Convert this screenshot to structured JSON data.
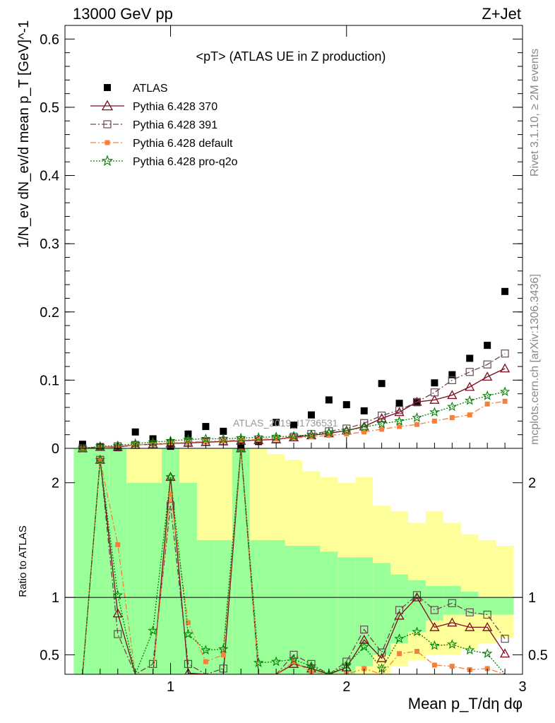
{
  "header": {
    "left": "13000 GeV pp",
    "right": "Z+Jet"
  },
  "side_labels": {
    "rivet": "Rivet 3.1.10, ≥ 2M events",
    "mcplots": "mcplots.cern.ch [arXiv:1306.3436]"
  },
  "watermark": "ATLAS_2019_I1736531",
  "colors": {
    "atlas": "#000000",
    "p370": "#7f0a1e",
    "p391": "#6b4652",
    "pdefault": "#f5803c",
    "pq2o": "#008000",
    "band_green": "#99ff99",
    "band_yellow": "#ffff99"
  },
  "chart_data": [
    {
      "type": "scatter",
      "title": "<pT> (ATLAS UE in Z production)",
      "ylabel": "1/N_ev dN_ev/d mean p_T [GeV]^-1",
      "ylim": [
        0,
        0.62
      ],
      "xlim": [
        0.4,
        3.0
      ],
      "yticks": [
        "0",
        "0.1",
        "0.2",
        "0.3",
        "0.4",
        "0.5",
        "0.6"
      ],
      "legend_position": "top-left",
      "x": [
        0.5,
        0.6,
        0.7,
        0.8,
        0.9,
        1.0,
        1.1,
        1.2,
        1.3,
        1.4,
        1.5,
        1.6,
        1.7,
        1.8,
        1.9,
        2.0,
        2.1,
        2.2,
        2.3,
        2.4,
        2.5,
        2.6,
        2.7,
        2.8,
        2.9
      ],
      "series": [
        {
          "name": "ATLAS",
          "marker": "square",
          "values": [
            0.006,
            0.002,
            0.001,
            0.024,
            0.014,
            0.003,
            0.021,
            0.032,
            0.025,
            0.004,
            0.01,
            0.038,
            0.034,
            0.049,
            0.071,
            0.064,
            0.055,
            0.095,
            0.066,
            0.067,
            0.096,
            0.108,
            0.132,
            0.151,
            0.23
          ]
        },
        {
          "name": "Pythia 6.428 370",
          "marker": "triangle",
          "values": [
            0.0,
            0.002,
            0.002,
            0.005,
            0.006,
            0.007,
            0.008,
            0.009,
            0.01,
            0.011,
            0.012,
            0.013,
            0.016,
            0.019,
            0.022,
            0.026,
            0.032,
            0.044,
            0.053,
            0.068,
            0.071,
            0.078,
            0.09,
            0.105,
            0.117
          ]
        },
        {
          "name": "Pythia 6.428 391",
          "marker": "open-square",
          "values": [
            0.0,
            0.002,
            0.003,
            0.005,
            0.006,
            0.007,
            0.009,
            0.01,
            0.011,
            0.012,
            0.013,
            0.014,
            0.017,
            0.021,
            0.025,
            0.029,
            0.037,
            0.048,
            0.056,
            0.068,
            0.082,
            0.1,
            0.112,
            0.123,
            0.139
          ]
        },
        {
          "name": "Pythia 6.428 default",
          "marker": "small-square",
          "values": [
            0.0,
            0.002,
            0.003,
            0.005,
            0.006,
            0.008,
            0.009,
            0.01,
            0.011,
            0.012,
            0.013,
            0.014,
            0.015,
            0.017,
            0.019,
            0.021,
            0.024,
            0.028,
            0.032,
            0.035,
            0.04,
            0.045,
            0.049,
            0.065,
            0.069
          ]
        },
        {
          "name": "Pythia 6.428 pro-q2o",
          "marker": "star",
          "values": [
            0.0,
            0.003,
            0.004,
            0.007,
            0.009,
            0.011,
            0.013,
            0.014,
            0.014,
            0.015,
            0.016,
            0.017,
            0.018,
            0.02,
            0.023,
            0.026,
            0.031,
            0.036,
            0.04,
            0.045,
            0.053,
            0.061,
            0.07,
            0.077,
            0.083
          ]
        }
      ]
    },
    {
      "type": "line",
      "ylabel": "Ratio to ATLAS",
      "xlabel": "Mean p_T/dη dφ",
      "ylim": [
        0.33,
        2.3
      ],
      "xlim": [
        0.4,
        3.0
      ],
      "yticks": [
        "0.5",
        "1",
        "2"
      ],
      "xticks": [
        "1",
        "2",
        "3"
      ],
      "x": [
        0.5,
        0.6,
        0.7,
        0.8,
        0.9,
        1.0,
        1.1,
        1.2,
        1.3,
        1.4,
        1.5,
        1.6,
        1.7,
        1.8,
        1.9,
        2.0,
        2.1,
        2.2,
        2.3,
        2.4,
        2.5,
        2.6,
        2.7,
        2.8,
        2.9
      ],
      "bands": {
        "green_upper": [
          2.5,
          2.5,
          2.5,
          2.0,
          2.0,
          2.5,
          2.0,
          1.5,
          1.5,
          2.5,
          1.5,
          1.5,
          1.45,
          1.45,
          1.4,
          1.35,
          1.35,
          1.3,
          1.2,
          1.15,
          1.1,
          1.1,
          1.05,
          1.0,
          1.0
        ],
        "green_lower": [
          0.0,
          0.0,
          0.0,
          0.0,
          0.0,
          0.0,
          0.0,
          0.0,
          0.0,
          0.0,
          0.0,
          0.0,
          0.0,
          0.0,
          0.0,
          0.33,
          0.4,
          0.5,
          0.6,
          0.7,
          0.8,
          0.85,
          0.85,
          0.85,
          0.85
        ],
        "yellow_upper": [
          2.5,
          2.5,
          2.5,
          2.5,
          2.5,
          2.5,
          2.5,
          2.5,
          2.5,
          2.5,
          2.5,
          2.25,
          2.2,
          2.1,
          2.05,
          2.0,
          2.05,
          1.8,
          1.75,
          1.65,
          1.75,
          1.65,
          1.55,
          1.5,
          1.45
        ],
        "yellow_lower": [
          0.0,
          0.0,
          0.0,
          0.0,
          0.0,
          0.0,
          0.0,
          0.0,
          0.0,
          0.0,
          0.0,
          0.0,
          0.0,
          0.0,
          0.0,
          0.0,
          0.33,
          0.33,
          0.4,
          0.45,
          0.5,
          0.5,
          0.55,
          0.6,
          0.65
        ]
      },
      "series": [
        {
          "name": "Pythia 6.428 370",
          "values": [
            0.0,
            2.2,
            0.86,
            0.0,
            0.0,
            2.05,
            0.34,
            0.0,
            0.0,
            2.3,
            0.0,
            0.0,
            0.42,
            0.38,
            0.0,
            0.39,
            0.63,
            0.47,
            0.84,
            1.0,
            0.74,
            0.78,
            0.74,
            0.74,
            0.51
          ]
        },
        {
          "name": "Pythia 6.428 391",
          "values": [
            0.0,
            2.2,
            0.68,
            0.0,
            0.42,
            1.8,
            0.42,
            0.0,
            0.38,
            2.3,
            0.0,
            0.0,
            0.5,
            0.42,
            0.0,
            0.44,
            0.72,
            0.52,
            0.89,
            1.02,
            0.89,
            0.95,
            0.87,
            0.85,
            0.64
          ]
        },
        {
          "name": "Pythia 6.428 default",
          "values": [
            0.0,
            2.2,
            1.46,
            0.0,
            0.0,
            1.9,
            0.78,
            0.44,
            0.5,
            2.3,
            0.0,
            0.0,
            0.44,
            0.35,
            0.0,
            0.33,
            0.38,
            0.3,
            0.51,
            0.53,
            0.41,
            0.4,
            0.37,
            0.38,
            0.3
          ]
        },
        {
          "name": "Pythia 6.428 pro-q2o",
          "values": [
            0.0,
            2.2,
            1.02,
            0.0,
            0.71,
            2.05,
            0.68,
            0.54,
            0.55,
            2.3,
            0.43,
            0.44,
            0.46,
            0.4,
            0.33,
            0.41,
            0.57,
            0.38,
            0.64,
            0.7,
            0.58,
            0.59,
            0.54,
            0.51,
            0.3
          ]
        }
      ]
    }
  ]
}
